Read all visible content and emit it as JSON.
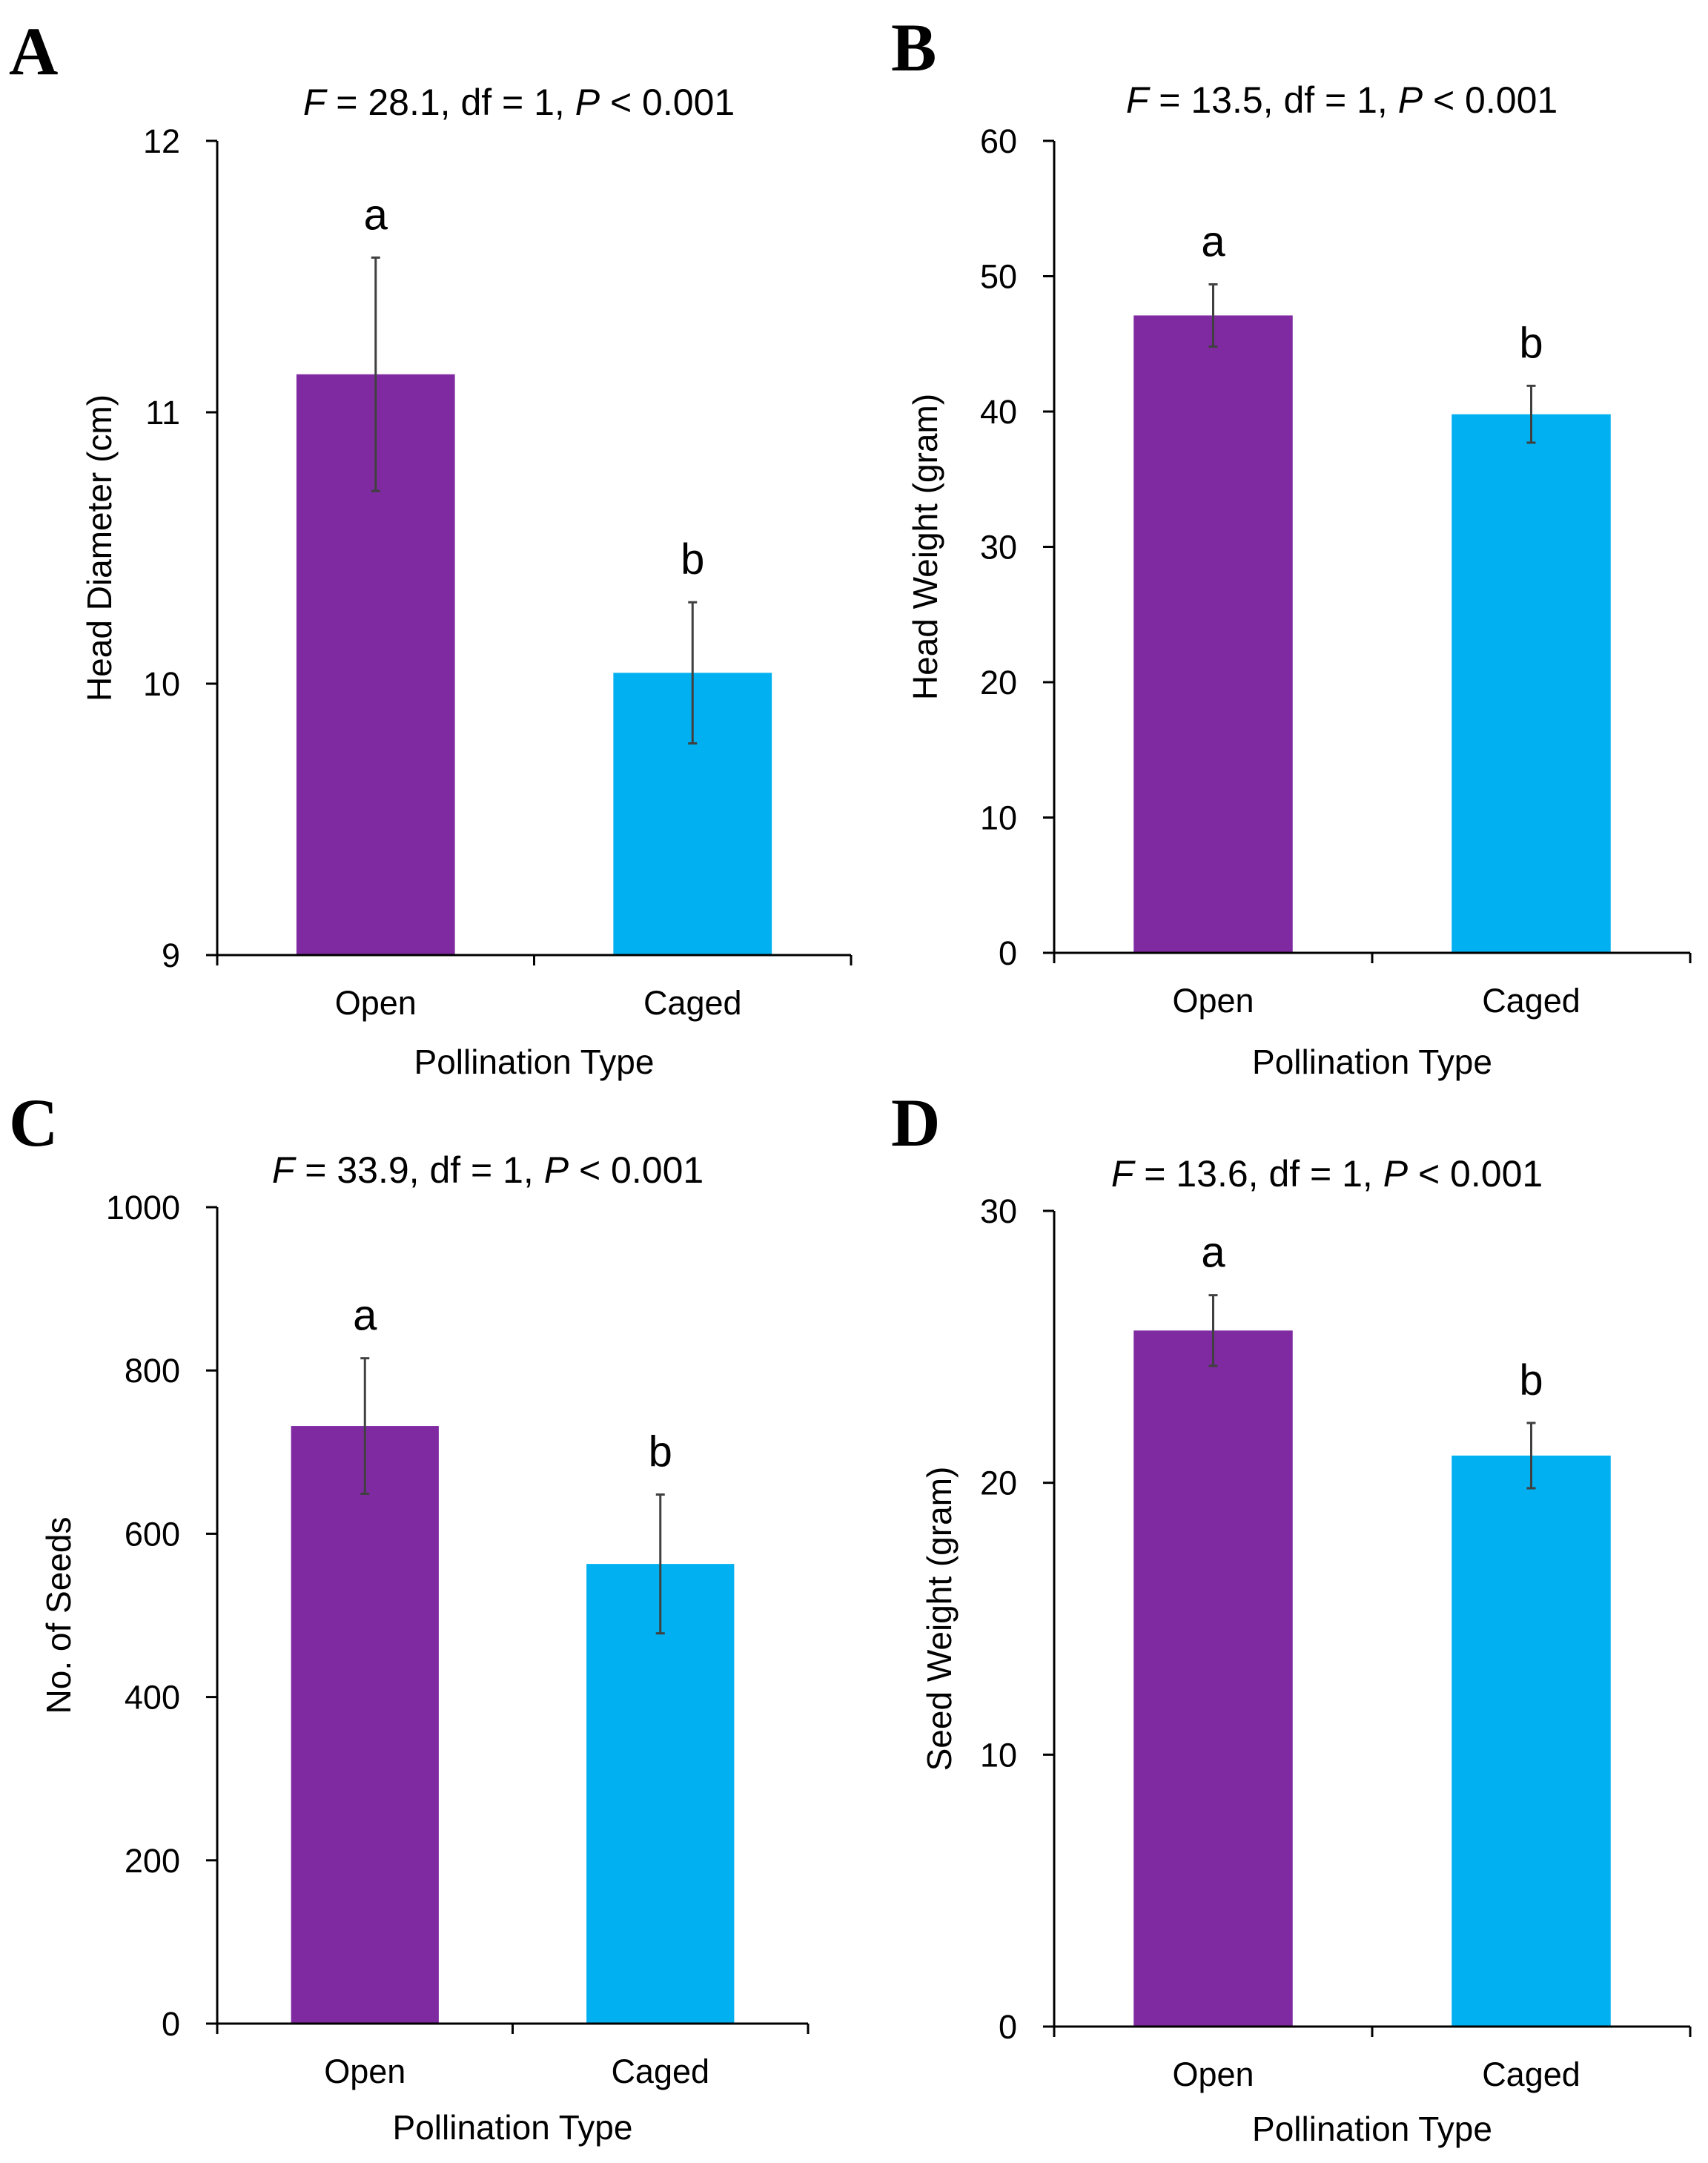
{
  "chart_data": [
    {
      "type": "bar",
      "panel": "A",
      "stat": {
        "f_label": "F",
        "f_value": " = 28.1, df = 1, ",
        "p_label": "P",
        "p_value": " < 0.001"
      },
      "categories": [
        "Open",
        "Caged"
      ],
      "values": [
        11.14,
        10.04
      ],
      "errors": [
        0.43,
        0.26
      ],
      "letters": [
        "a",
        "b"
      ],
      "colors": [
        "#7f2aa1",
        "#00b0f0"
      ],
      "xlabel": "Pollination Type",
      "ylabel": "Head Diameter (cm)",
      "ylim": [
        9,
        12
      ],
      "yticks": [
        9,
        10,
        11,
        12
      ]
    },
    {
      "type": "bar",
      "panel": "B",
      "stat": {
        "f_label": "F",
        "f_value": " = 13.5, df = 1, ",
        "p_label": "P",
        "p_value": " < 0.001"
      },
      "categories": [
        "Open",
        "Caged"
      ],
      "values": [
        47.1,
        39.8
      ],
      "errors": [
        2.3,
        2.1
      ],
      "letters": [
        "a",
        "b"
      ],
      "colors": [
        "#7f2aa1",
        "#00b0f0"
      ],
      "xlabel": "Pollination Type",
      "ylabel": "Head Weight (gram)",
      "ylim": [
        0,
        60
      ],
      "yticks": [
        0,
        10,
        20,
        30,
        40,
        50,
        60
      ]
    },
    {
      "type": "bar",
      "panel": "C",
      "stat": {
        "f_label": "F",
        "f_value": " = 33.9, df = 1, ",
        "p_label": "P",
        "p_value": " < 0.001"
      },
      "categories": [
        "Open",
        "Caged"
      ],
      "values": [
        732,
        563
      ],
      "errors": [
        83,
        85
      ],
      "letters": [
        "a",
        "b"
      ],
      "colors": [
        "#7f2aa1",
        "#00b0f0"
      ],
      "xlabel": "Pollination Type",
      "ylabel": "No. of Seeds",
      "ylim": [
        0,
        1000
      ],
      "yticks": [
        0,
        200,
        400,
        600,
        800,
        1000
      ]
    },
    {
      "type": "bar",
      "panel": "D",
      "stat": {
        "f_label": "F",
        "f_value": " = 13.6, df = 1, ",
        "p_label": "P",
        "p_value": " < 0.001"
      },
      "categories": [
        "Open",
        "Caged"
      ],
      "values": [
        25.6,
        21.0
      ],
      "errors": [
        1.3,
        1.2
      ],
      "letters": [
        "a",
        "b"
      ],
      "colors": [
        "#7f2aa1",
        "#00b0f0"
      ],
      "xlabel": "Pollination Type",
      "ylabel": "Seed Weight (gram)",
      "ylim": [
        0,
        30
      ],
      "yticks": [
        0,
        10,
        20,
        30
      ]
    }
  ]
}
